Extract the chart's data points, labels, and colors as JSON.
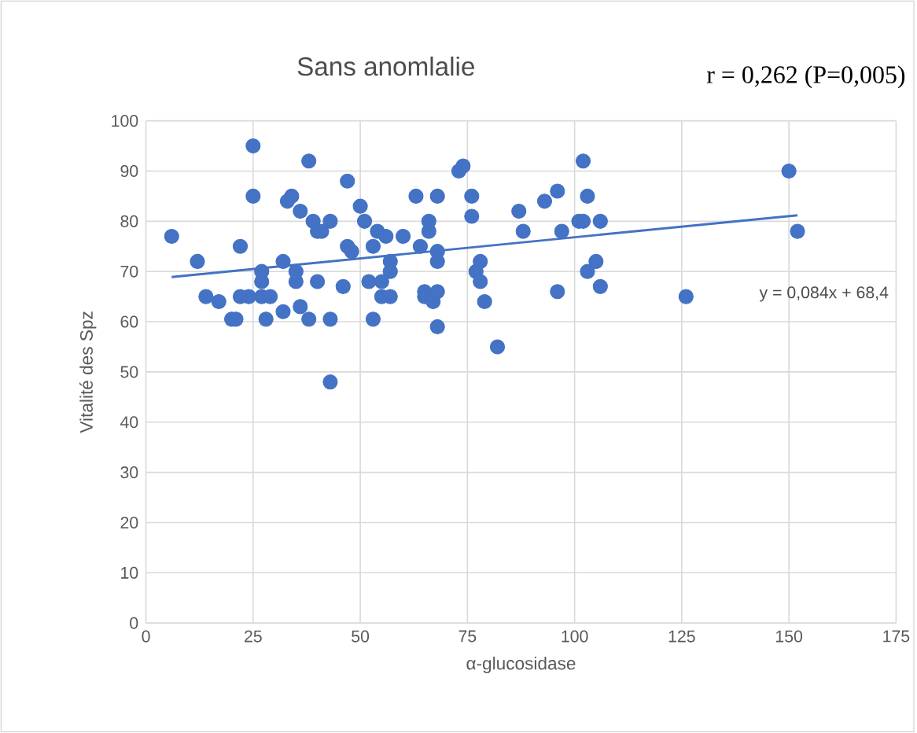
{
  "chart_data": {
    "type": "scatter",
    "title": "Sans anomlalie",
    "xlabel": "α-glucosidase",
    "ylabel": "Vitalité des Spz",
    "annotations": [
      "r = 0,262 (P=0,005)",
      "y = 0,084x + 68,4"
    ],
    "xlim": [
      0,
      175
    ],
    "xticks": [
      0,
      25,
      50,
      75,
      100,
      125,
      150,
      175
    ],
    "ylim": [
      0,
      100
    ],
    "yticks": [
      0,
      10,
      20,
      30,
      40,
      50,
      60,
      70,
      80,
      90,
      100
    ],
    "grid": true,
    "marker": "circle",
    "series": [
      {
        "color": "#4472c4",
        "x": [
          6,
          12,
          14,
          17,
          20,
          21,
          22,
          22,
          24,
          25,
          25,
          27,
          27,
          27,
          28,
          29,
          32,
          32,
          33,
          34,
          35,
          35,
          36,
          36,
          38,
          38,
          39,
          40,
          40,
          41,
          43,
          43,
          43,
          46,
          47,
          47,
          48,
          50,
          51,
          52,
          53,
          53,
          54,
          55,
          55,
          56,
          57,
          57,
          57,
          60,
          63,
          64,
          65,
          65,
          66,
          66,
          67,
          68,
          68,
          68,
          68,
          68,
          73,
          74,
          76,
          76,
          77,
          78,
          78,
          79,
          82,
          87,
          88,
          93,
          96,
          96,
          97,
          101,
          102,
          102,
          103,
          103,
          105,
          106,
          106,
          126,
          150,
          152
        ],
        "values": [
          77,
          72,
          65,
          64,
          60.5,
          60.5,
          75,
          65,
          65,
          95,
          85,
          70,
          68,
          65,
          60.5,
          65,
          62,
          72,
          84,
          85,
          68,
          70,
          82,
          63,
          60.5,
          92,
          80,
          78,
          68,
          78,
          80,
          60.5,
          48,
          67,
          88,
          75,
          74,
          83,
          80,
          68,
          75,
          60.5,
          78,
          68,
          65,
          77,
          72,
          65,
          70,
          77,
          85,
          75,
          65,
          66,
          80,
          78,
          64,
          85,
          74,
          72,
          66,
          59,
          90,
          91,
          85,
          81,
          70,
          72,
          68,
          64,
          55,
          82,
          78,
          84,
          66,
          86,
          78,
          80,
          80,
          92,
          85,
          70,
          72,
          80,
          67,
          65,
          90,
          78
        ]
      },
      {
        "type": "line",
        "color": "#4472c4",
        "marker": "none",
        "x": [
          6,
          152
        ],
        "values": [
          68.9,
          81.2
        ]
      }
    ]
  }
}
